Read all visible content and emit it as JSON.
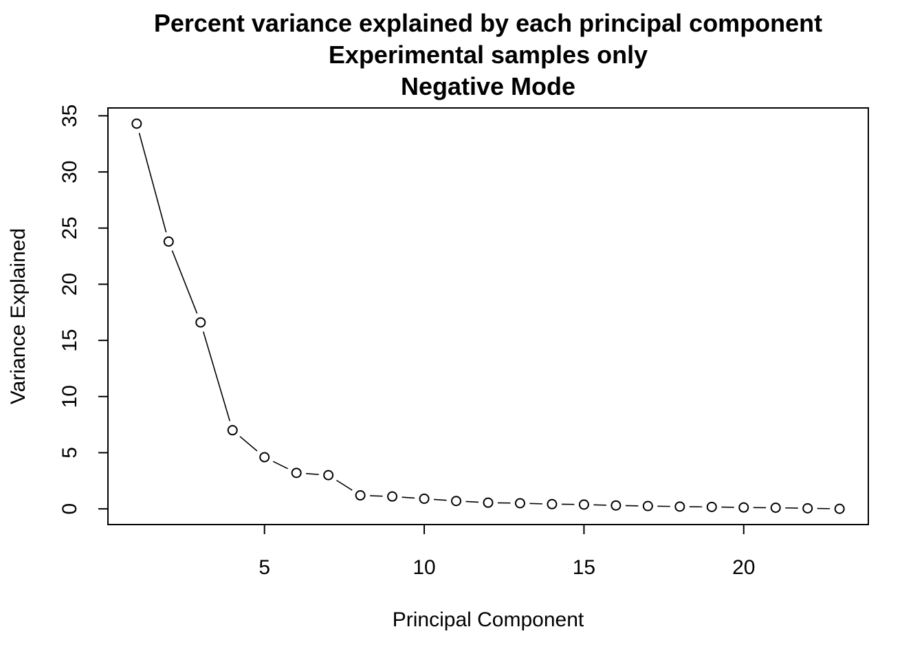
{
  "chart_data": {
    "type": "line",
    "title_lines": [
      "Percent variance explained by each principal component",
      "Experimental samples only",
      "Negative Mode"
    ],
    "xlabel": "Principal Component",
    "ylabel": "Variance Explained",
    "xlim": [
      0.1,
      23.9
    ],
    "ylim": [
      -1.4,
      35.7
    ],
    "x_ticks": [
      5,
      10,
      15,
      20
    ],
    "y_ticks": [
      0,
      5,
      10,
      15,
      20,
      25,
      30,
      35
    ],
    "grid": false,
    "legend": "none",
    "marker": "open-circle",
    "line_style": "connected with gaps at points",
    "series": [
      {
        "x": [
          1,
          2,
          3,
          4,
          5,
          6,
          7,
          8,
          9,
          10,
          11,
          12,
          13,
          14,
          15,
          16,
          17,
          18,
          19,
          20,
          21,
          22,
          23
        ],
        "values": [
          34.3,
          23.8,
          16.6,
          7.0,
          4.6,
          3.2,
          3.0,
          1.2,
          1.1,
          0.9,
          0.7,
          0.55,
          0.5,
          0.42,
          0.38,
          0.3,
          0.25,
          0.2,
          0.17,
          0.12,
          0.1,
          0.05,
          0.0
        ]
      }
    ]
  }
}
